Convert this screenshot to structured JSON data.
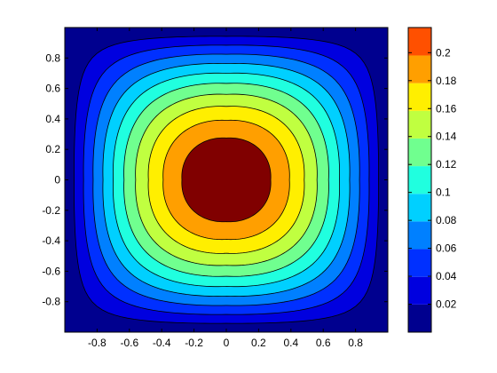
{
  "chart_data": {
    "type": "heatmap",
    "subtype": "filled-contour",
    "title": "",
    "xlabel": "",
    "ylabel": "",
    "xlim": [
      -1,
      1
    ],
    "ylim": [
      -1,
      1
    ],
    "x_ticks": [
      -0.8,
      -0.6,
      -0.4,
      -0.2,
      0,
      0.2,
      0.4,
      0.6,
      0.8
    ],
    "x_tick_labels": [
      "-0.8",
      "-0.6",
      "-0.4",
      "-0.2",
      "0",
      "0.2",
      "0.4",
      "0.6",
      "0.8"
    ],
    "y_ticks": [
      0.8,
      0.6,
      0.4,
      0.2,
      0,
      -0.2,
      -0.4,
      -0.6,
      -0.8
    ],
    "y_tick_labels": [
      "0.8",
      "0.6",
      "0.4",
      "0.2",
      "0",
      "-0.2",
      "-0.4",
      "-0.6",
      "-0.8"
    ],
    "colorbar": {
      "colormap": "jet",
      "clim": [
        0,
        0.218
      ],
      "ticks": [
        0.02,
        0.04,
        0.06,
        0.08,
        0.1,
        0.12,
        0.14,
        0.16,
        0.18,
        0.2
      ],
      "tick_labels": [
        "0.02",
        "0.04",
        "0.06",
        "0.08",
        "0.1",
        "0.12",
        "0.14",
        "0.16",
        "0.18",
        "0.2"
      ]
    },
    "contour_levels": [
      0.0198,
      0.0396,
      0.0594,
      0.0792,
      0.099,
      0.1188,
      0.1386,
      0.1584,
      0.1782,
      0.198
    ],
    "level_colors": [
      "#00008f",
      "#0000df",
      "#0030ff",
      "#0080ff",
      "#00d0ff",
      "#20ffdf",
      "#70ff8f",
      "#c0ff40",
      "#ffef00",
      "#ff9f00",
      "#ff5000",
      "#df0000",
      "#800000"
    ],
    "peak_value": 0.218,
    "peak_location": [
      0,
      0
    ],
    "boundary_value": 0
  }
}
